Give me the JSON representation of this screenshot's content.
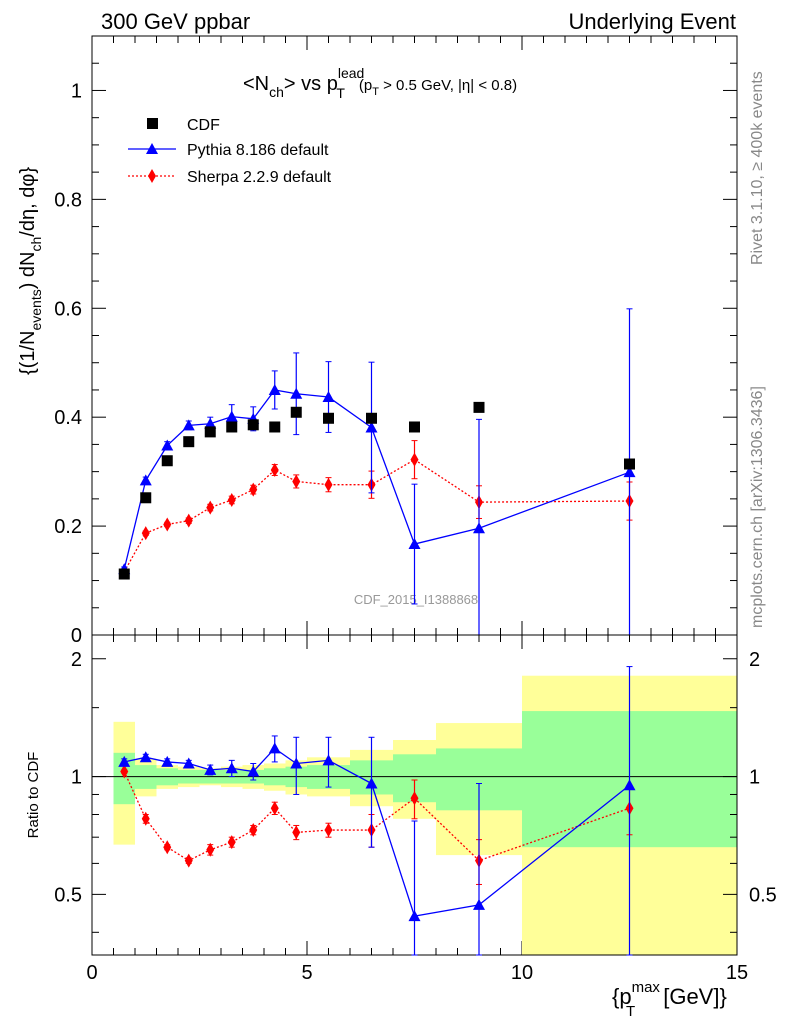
{
  "header": {
    "left": "300 GeV ppbar",
    "right": "Underlying Event"
  },
  "side_labels": {
    "rivet": "Rivet 3.1.10, ≥ 400k events",
    "mcplots": "mcplots.cern.ch [arXiv:1306.3436]"
  },
  "watermark": "CDF_2015_I1388868",
  "colors": {
    "cdf": "#000000",
    "pythia": "#0000ff",
    "sherpa": "#ff0000",
    "band_inner": "#99ff99",
    "band_outer": "#ffff99"
  },
  "chart_data": [
    {
      "type": "scatter",
      "title": "<N_ch> vs p_T^lead (p_T > 0.5 GeV, |η| < 0.8)",
      "title_parts": {
        "main": "<N",
        "sub_ch": "ch",
        "vs": "> vs p",
        "sup_lead": "lead",
        "sub_T": "T",
        "cut_open": "(p",
        "cut_sub": "T",
        "cut_rest": " > 0.5 GeV, |η| < 0.8)"
      },
      "ylabel": "{(1/N_events) dN_ch/dη, dφ}",
      "ylabel_parts": {
        "a": "{(1/N",
        "sub_events": "events",
        "b": ") dN",
        "sub_ch": "ch",
        "c": "/dη, dφ}"
      },
      "xlim": [
        0,
        15
      ],
      "ylim": [
        0,
        1.1
      ],
      "yticks": [
        0,
        0.2,
        0.4,
        0.6,
        0.8,
        1
      ],
      "ytick_labels": [
        "0",
        "0.2",
        "0.4",
        "0.6",
        "0.8",
        "1"
      ],
      "legend_position": "top-left",
      "series": [
        {
          "name": "CDF",
          "marker": "square",
          "x": [
            0.75,
            1.25,
            1.75,
            2.25,
            2.75,
            3.25,
            3.75,
            4.25,
            4.75,
            5.5,
            6.5,
            7.5,
            9.0,
            12.5
          ],
          "y": [
            0.112,
            0.252,
            0.32,
            0.355,
            0.373,
            0.382,
            0.386,
            0.382,
            0.409,
            0.398,
            0.398,
            0.382,
            0.418,
            0.314
          ]
        },
        {
          "name": "Pythia 8.186 default",
          "marker": "triangle",
          "x": [
            0.75,
            1.25,
            1.75,
            2.25,
            2.75,
            3.25,
            3.75,
            4.25,
            4.75,
            5.5,
            6.5,
            7.5,
            9.0,
            12.5
          ],
          "y": [
            0.121,
            0.284,
            0.348,
            0.385,
            0.388,
            0.401,
            0.397,
            0.45,
            0.443,
            0.437,
            0.381,
            0.167,
            0.196,
            0.299
          ],
          "yerr": [
            0.004,
            0.006,
            0.007,
            0.008,
            0.012,
            0.022,
            0.022,
            0.035,
            0.075,
            0.065,
            0.12,
            0.11,
            0.2,
            0.3
          ]
        },
        {
          "name": "Sherpa 2.2.9 default",
          "marker": "diamond",
          "x": [
            0.75,
            1.25,
            1.75,
            2.25,
            2.75,
            3.25,
            3.75,
            4.25,
            4.75,
            5.5,
            6.5,
            7.5,
            9.0,
            12.5
          ],
          "y": [
            0.116,
            0.187,
            0.203,
            0.21,
            0.234,
            0.248,
            0.267,
            0.303,
            0.282,
            0.276,
            0.276,
            0.322,
            0.244,
            0.246
          ],
          "yerr": [
            0.002,
            0.004,
            0.004,
            0.005,
            0.006,
            0.007,
            0.008,
            0.01,
            0.012,
            0.013,
            0.025,
            0.035,
            0.03,
            0.035
          ]
        }
      ]
    },
    {
      "type": "scatter",
      "ylabel": "Ratio to CDF",
      "xlabel": "{p_T^max [GeV]}",
      "xlabel_parts": {
        "a": "{p",
        "sup": "max",
        "sub": "T",
        "b": " [GeV]}"
      },
      "xlim": [
        0,
        15
      ],
      "ylim": [
        0.35,
        2.3
      ],
      "log_y": true,
      "yticks": [
        0.5,
        1,
        2
      ],
      "ytick_labels": [
        "0.5",
        "1",
        "2"
      ],
      "xticks": [
        0,
        5,
        10,
        15
      ],
      "xtick_labels": [
        "0",
        "5",
        "10",
        "15"
      ],
      "reference_line": 1,
      "band_bins": [
        {
          "x": [
            0.5,
            1.0
          ],
          "inner": [
            0.85,
            1.15
          ],
          "outer": [
            0.67,
            1.38
          ]
        },
        {
          "x": [
            1.0,
            1.5
          ],
          "inner": [
            0.93,
            1.07
          ],
          "outer": [
            0.89,
            1.11
          ]
        },
        {
          "x": [
            1.5,
            2.0
          ],
          "inner": [
            0.95,
            1.05
          ],
          "outer": [
            0.93,
            1.07
          ]
        },
        {
          "x": [
            2.0,
            2.5
          ],
          "inner": [
            0.96,
            1.04
          ],
          "outer": [
            0.94,
            1.06
          ]
        },
        {
          "x": [
            2.5,
            3.0
          ],
          "inner": [
            0.96,
            1.04
          ],
          "outer": [
            0.95,
            1.05
          ]
        },
        {
          "x": [
            3.0,
            3.5
          ],
          "inner": [
            0.96,
            1.04
          ],
          "outer": [
            0.94,
            1.06
          ]
        },
        {
          "x": [
            3.5,
            4.0
          ],
          "inner": [
            0.96,
            1.04
          ],
          "outer": [
            0.93,
            1.07
          ]
        },
        {
          "x": [
            4.0,
            4.5
          ],
          "inner": [
            0.95,
            1.05
          ],
          "outer": [
            0.92,
            1.08
          ]
        },
        {
          "x": [
            4.5,
            5.0
          ],
          "inner": [
            0.94,
            1.06
          ],
          "outer": [
            0.9,
            1.1
          ]
        },
        {
          "x": [
            5.0,
            6.0
          ],
          "inner": [
            0.93,
            1.07
          ],
          "outer": [
            0.89,
            1.12
          ]
        },
        {
          "x": [
            6.0,
            7.0
          ],
          "inner": [
            0.9,
            1.1
          ],
          "outer": [
            0.84,
            1.17
          ]
        },
        {
          "x": [
            7.0,
            8.0
          ],
          "inner": [
            0.86,
            1.14
          ],
          "outer": [
            0.78,
            1.24
          ]
        },
        {
          "x": [
            8.0,
            10.0
          ],
          "inner": [
            0.82,
            1.18
          ],
          "outer": [
            0.63,
            1.37
          ]
        },
        {
          "x": [
            10.0,
            15.0
          ],
          "inner": [
            0.66,
            1.47
          ],
          "outer": [
            0.33,
            1.81
          ]
        }
      ],
      "series": [
        {
          "name": "Pythia 8.186 default",
          "x": [
            0.75,
            1.25,
            1.75,
            2.25,
            2.75,
            3.25,
            3.75,
            4.25,
            4.75,
            5.5,
            6.5,
            7.5,
            9.0,
            12.5
          ],
          "y": [
            1.09,
            1.12,
            1.09,
            1.08,
            1.04,
            1.05,
            1.03,
            1.18,
            1.08,
            1.1,
            0.96,
            0.44,
            0.47,
            0.95
          ],
          "yerr": [
            0.02,
            0.02,
            0.02,
            0.02,
            0.03,
            0.05,
            0.05,
            0.09,
            0.18,
            0.16,
            0.3,
            0.33,
            0.49,
            0.96
          ]
        },
        {
          "name": "Sherpa 2.2.9 default",
          "x": [
            0.75,
            1.25,
            1.75,
            2.25,
            2.75,
            3.25,
            3.75,
            4.25,
            4.75,
            5.5,
            6.5,
            7.5,
            9.0,
            12.5
          ],
          "y": [
            1.03,
            0.78,
            0.66,
            0.61,
            0.65,
            0.68,
            0.73,
            0.83,
            0.72,
            0.73,
            0.73,
            0.88,
            0.61,
            0.83
          ],
          "yerr": [
            0.01,
            0.02,
            0.01,
            0.01,
            0.02,
            0.02,
            0.02,
            0.03,
            0.03,
            0.03,
            0.07,
            0.1,
            0.08,
            0.12
          ]
        }
      ]
    }
  ]
}
